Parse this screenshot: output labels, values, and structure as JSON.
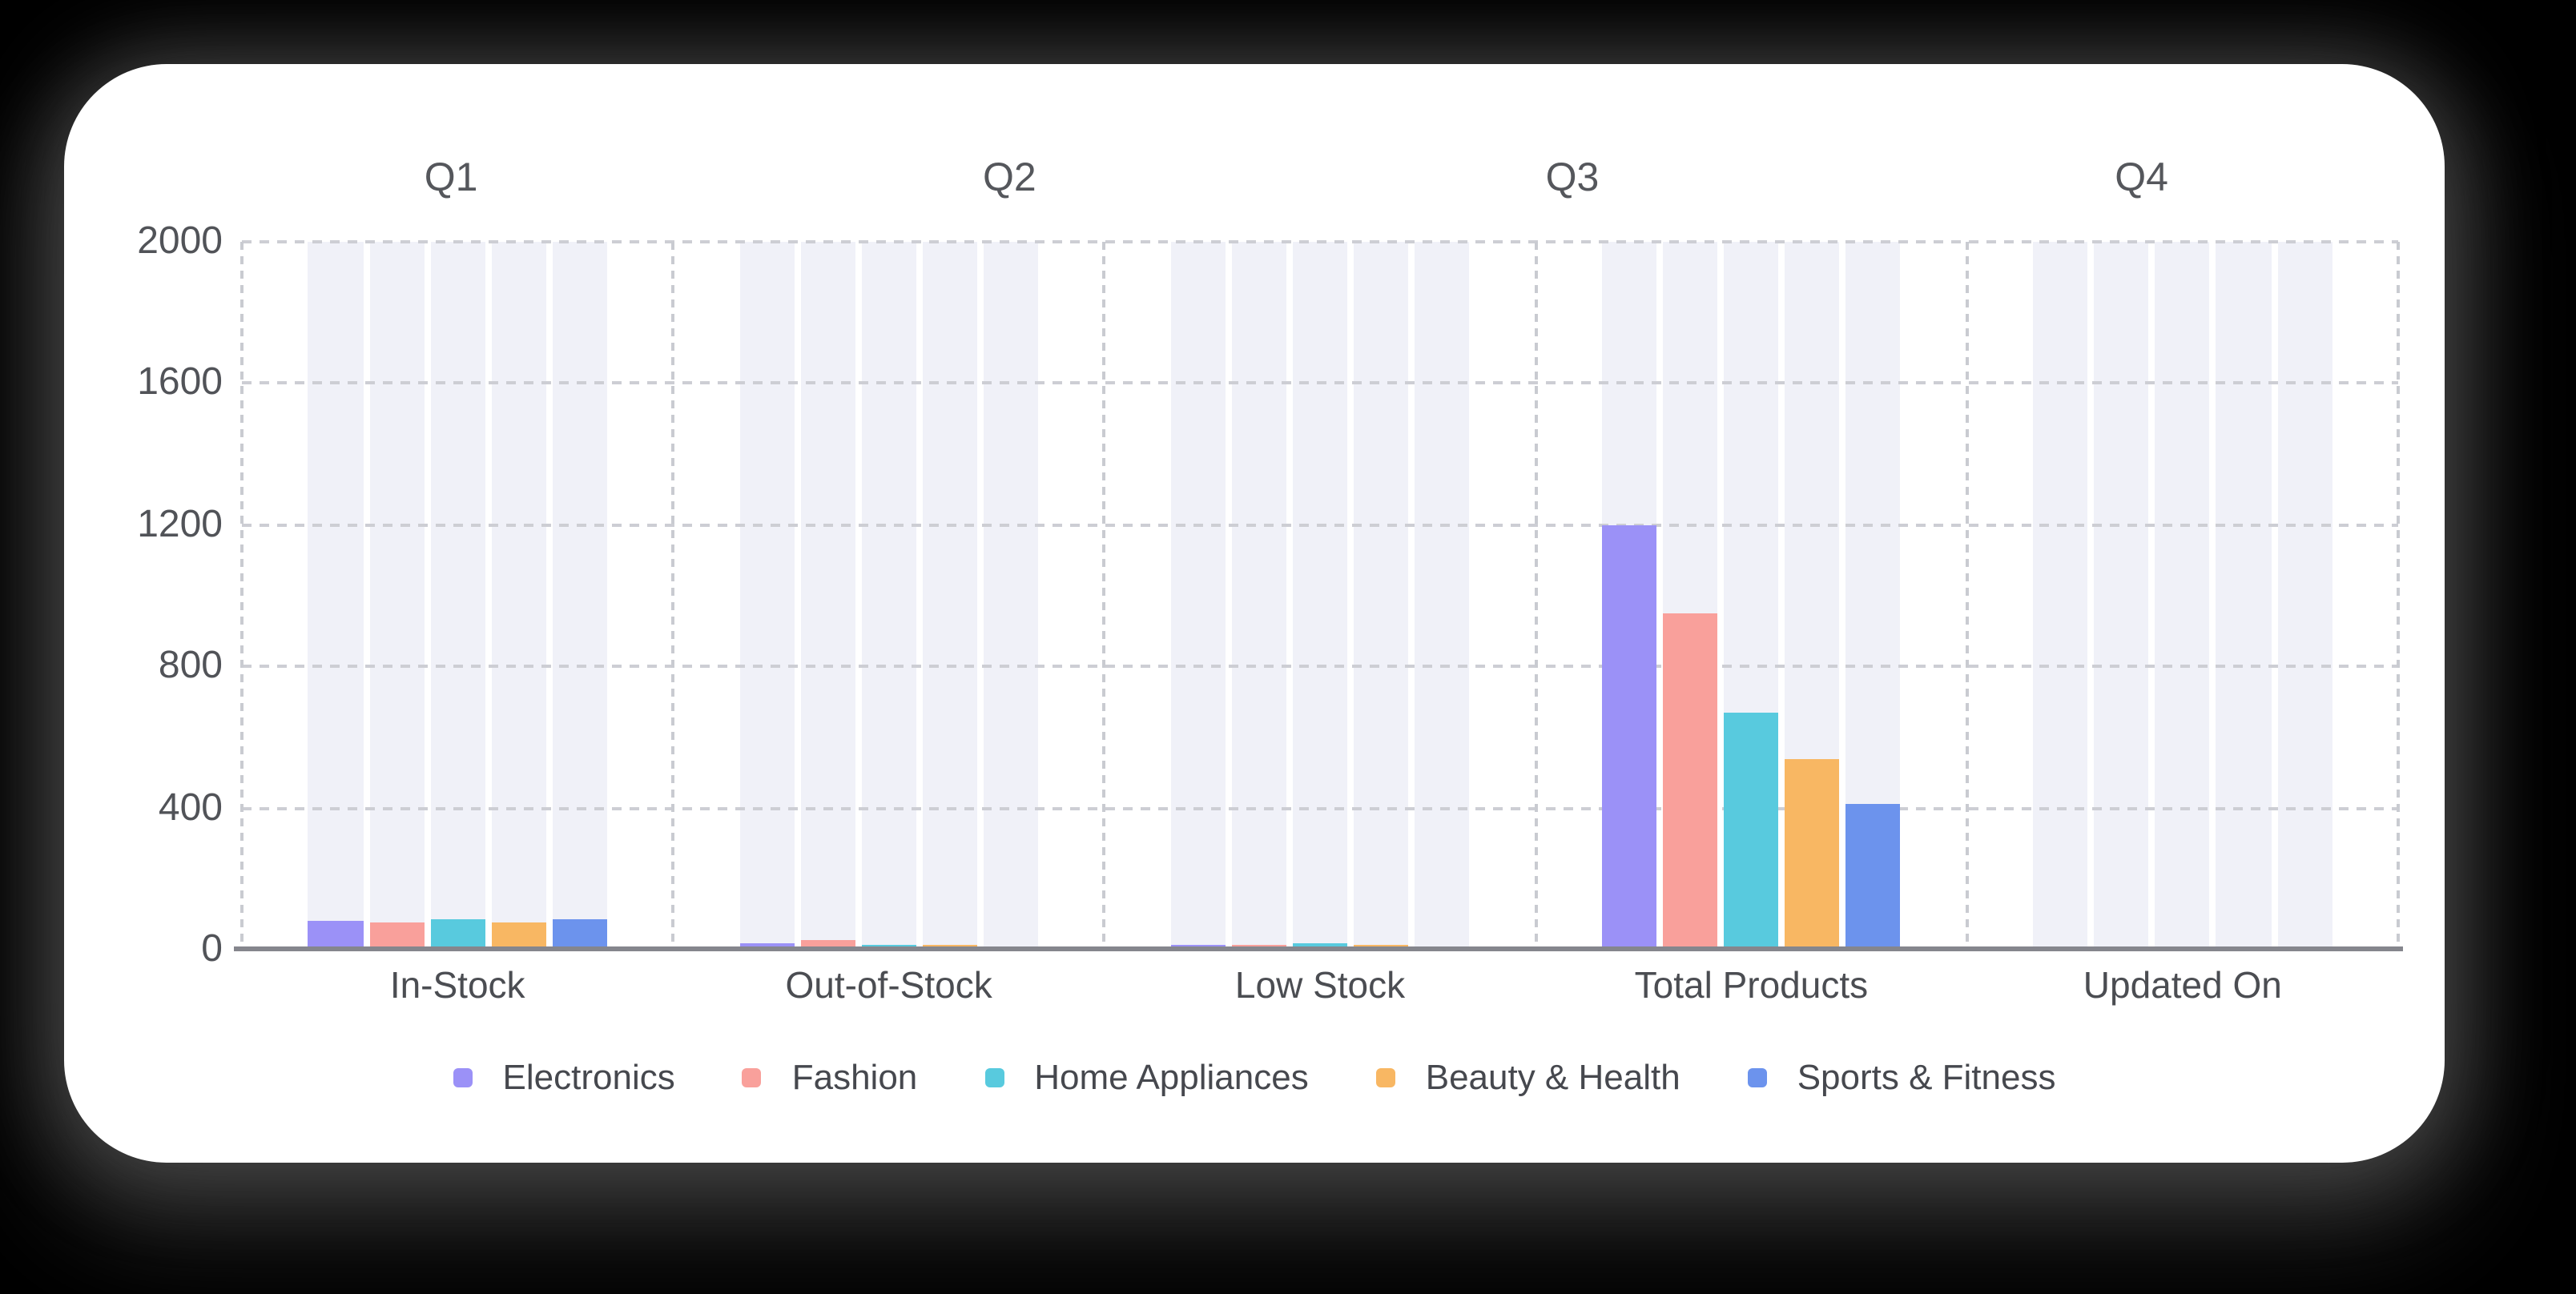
{
  "page": {
    "background_color": "#000000",
    "card_background_color": "#ffffff"
  },
  "chart_data": {
    "type": "bar",
    "title": "",
    "quarter_labels": [
      "Q1",
      "Q2",
      "Q3",
      "Q4"
    ],
    "quarter_label_positions_pct": [
      9.7,
      35.6,
      61.7,
      88.1
    ],
    "categories": [
      "In-Stock",
      "Out-of-Stock",
      "Low Stock",
      "Total Products",
      "Updated On"
    ],
    "series": [
      {
        "name": "Electronics",
        "color": "#9b91f7",
        "values": [
          82,
          18,
          15,
          1200,
          0
        ]
      },
      {
        "name": "Fashion",
        "color": "#f9a09b",
        "values": [
          77,
          25,
          15,
          950,
          0
        ]
      },
      {
        "name": "Home Appliances",
        "color": "#58cade",
        "values": [
          85,
          13,
          17,
          670,
          0
        ]
      },
      {
        "name": "Beauty & Health",
        "color": "#f8b763",
        "values": [
          78,
          15,
          15,
          540,
          0
        ]
      },
      {
        "name": "Sports & Fitness",
        "color": "#6c93ed",
        "values": [
          88,
          10,
          11,
          410,
          0
        ]
      }
    ],
    "yticks": [
      0,
      400,
      800,
      1200,
      1600,
      2000
    ],
    "ylim": [
      0,
      2000
    ],
    "grid": true,
    "gridline_style": "dashed",
    "legend_position": "bottom",
    "band_color": "#f0f1f8",
    "grid_color": "#cdced4",
    "axis_color": "#85868d"
  }
}
